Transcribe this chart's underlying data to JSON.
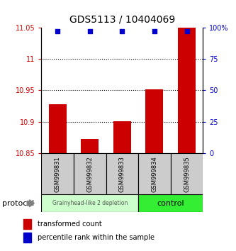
{
  "title": "GDS5113 / 10404069",
  "samples": [
    "GSM999831",
    "GSM999832",
    "GSM999833",
    "GSM999834",
    "GSM999835"
  ],
  "bar_values": [
    10.928,
    10.872,
    10.901,
    10.952,
    11.075
  ],
  "percentile_values": [
    97,
    97,
    97,
    97,
    97
  ],
  "ylim_left": [
    10.85,
    11.05
  ],
  "ylim_right": [
    0,
    100
  ],
  "yticks_left": [
    10.85,
    10.9,
    10.95,
    11.0,
    11.05
  ],
  "yticks_right": [
    0,
    25,
    50,
    75,
    100
  ],
  "ytick_labels_left": [
    "10.85",
    "10.9",
    "10.95",
    "11",
    "11.05"
  ],
  "ytick_labels_right": [
    "0",
    "25",
    "50",
    "75",
    "100%"
  ],
  "bar_color": "#cc0000",
  "dot_color": "#0000cc",
  "group1_label": "Grainyhead-like 2 depletion",
  "group2_label": "control",
  "group1_color": "#ccffcc",
  "group2_color": "#33ee33",
  "protocol_label": "protocol",
  "legend_bar_label": "transformed count",
  "legend_dot_label": "percentile rank within the sample",
  "bar_width": 0.55,
  "sample_box_color": "#cccccc"
}
